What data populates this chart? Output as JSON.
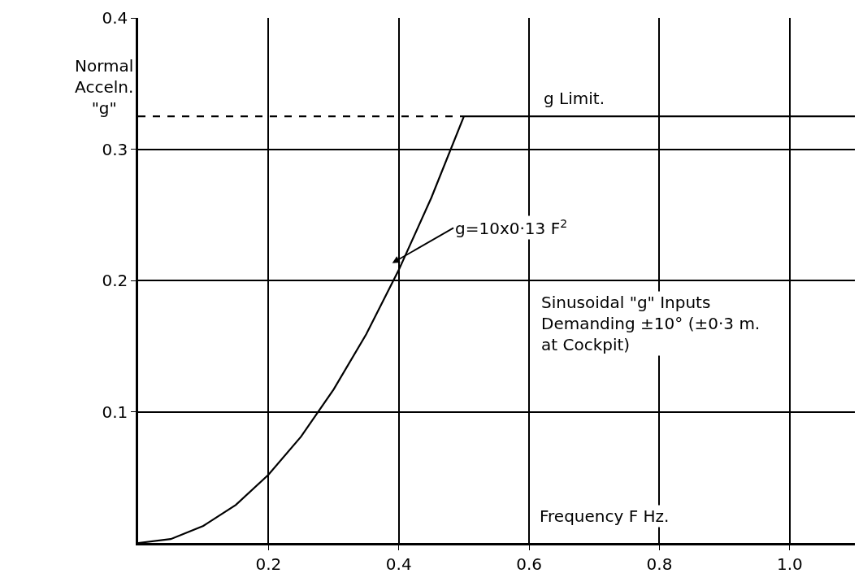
{
  "chart_data": {
    "type": "line",
    "xlabel": "Frequency F Hz.",
    "ylabel": "Normal\nAcceln.\n\"g\"",
    "xlim": [
      0,
      1.1
    ],
    "ylim": [
      0,
      0.4
    ],
    "xticks": [
      {
        "value": 0.2,
        "label": "0.2"
      },
      {
        "value": 0.4,
        "label": "0.4"
      },
      {
        "value": 0.6,
        "label": "0.6"
      },
      {
        "value": 0.8,
        "label": "0.8"
      },
      {
        "value": 1.0,
        "label": "1.0"
      }
    ],
    "yticks": [
      0.1,
      0.2,
      0.3,
      0.4
    ],
    "grid": true,
    "marker": "none",
    "series": [
      {
        "color": "#000000",
        "line_style": "solid",
        "x": [
          0,
          0.05,
          0.1,
          0.15,
          0.2,
          0.25,
          0.3,
          0.35,
          0.4,
          0.45,
          0.5,
          1.1
        ],
        "values": [
          0,
          0.003,
          0.013,
          0.029,
          0.052,
          0.081,
          0.117,
          0.159,
          0.208,
          0.263,
          0.325,
          0.325
        ]
      },
      {
        "color": "#000000",
        "line_style": "dashed",
        "x": [
          0,
          0.5
        ],
        "values": [
          0.325,
          0.325
        ]
      }
    ],
    "annotations": [
      {
        "text": "g Limit.",
        "x": 0.62,
        "y": 0.325
      },
      "g=10x0·13 F$^{2}$",
      "Sinusoidal \"g\" Inputs\nDemanding ±10° (±0·3 m.\nat Cockpit)"
    ]
  }
}
